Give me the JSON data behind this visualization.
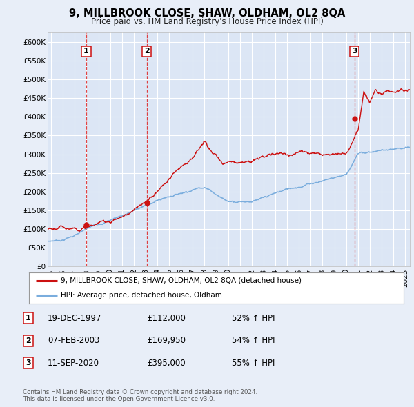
{
  "title": "9, MILLBROOK CLOSE, SHAW, OLDHAM, OL2 8QA",
  "subtitle": "Price paid vs. HM Land Registry's House Price Index (HPI)",
  "background_color": "#e8eef8",
  "plot_bg_color": "#dce6f5",
  "ylim": [
    0,
    625000
  ],
  "yticks": [
    0,
    50000,
    100000,
    150000,
    200000,
    250000,
    300000,
    350000,
    400000,
    450000,
    500000,
    550000,
    600000
  ],
  "xlim_start": 1994.7,
  "xlim_end": 2025.4,
  "xticks": [
    1995,
    1996,
    1997,
    1998,
    1999,
    2000,
    2001,
    2002,
    2003,
    2004,
    2005,
    2006,
    2007,
    2008,
    2009,
    2010,
    2011,
    2012,
    2013,
    2014,
    2015,
    2016,
    2017,
    2018,
    2019,
    2020,
    2021,
    2022,
    2023,
    2024,
    2025
  ],
  "sale_dates": [
    1997.97,
    2003.1,
    2020.7
  ],
  "sale_prices": [
    112000,
    169950,
    395000
  ],
  "sale_labels": [
    "1",
    "2",
    "3"
  ],
  "hpi_line_color": "#7aaddd",
  "sale_line_color": "#cc1111",
  "sale_dot_color": "#cc1111",
  "vline_color": "#dd2222",
  "legend_items": [
    "9, MILLBROOK CLOSE, SHAW, OLDHAM, OL2 8QA (detached house)",
    "HPI: Average price, detached house, Oldham"
  ],
  "table_rows": [
    {
      "num": "1",
      "date": "19-DEC-1997",
      "price": "£112,000",
      "hpi": "52% ↑ HPI"
    },
    {
      "num": "2",
      "date": "07-FEB-2003",
      "price": "£169,950",
      "hpi": "54% ↑ HPI"
    },
    {
      "num": "3",
      "date": "11-SEP-2020",
      "price": "£395,000",
      "hpi": "55% ↑ HPI"
    }
  ],
  "footer": "Contains HM Land Registry data © Crown copyright and database right 2024.\nThis data is licensed under the Open Government Licence v3.0.",
  "font_family": "DejaVu Sans"
}
